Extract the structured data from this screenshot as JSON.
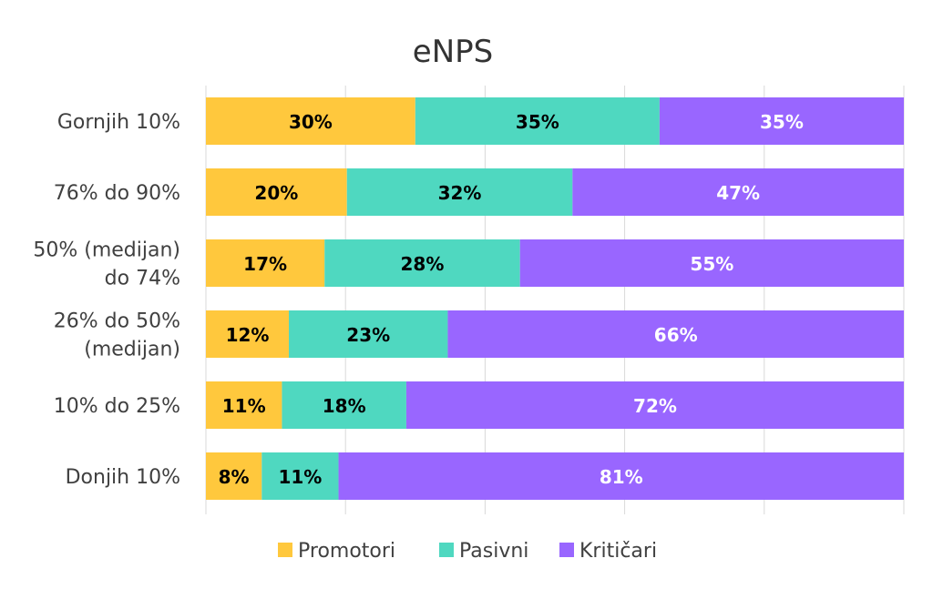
{
  "chart_data": {
    "type": "bar",
    "orientation": "horizontal",
    "stacked": true,
    "title": "eNPS",
    "categories": [
      [
        "Gornjih 10%"
      ],
      [
        "76% do 90%"
      ],
      [
        "50% (medijan)",
        "do 74%"
      ],
      [
        "26% do 50%",
        "(medijan)"
      ],
      [
        "10% do 25%"
      ],
      [
        "Donjih 10%"
      ]
    ],
    "series": [
      {
        "name": "Promotori",
        "color": "#FFC83D",
        "label_color": "#000000",
        "values": [
          30,
          20,
          17,
          12,
          11,
          8
        ],
        "labels": [
          "30%",
          "20%",
          "17%",
          "12%",
          "11%",
          "8%"
        ]
      },
      {
        "name": "Pasivni",
        "color": "#4FD8C0",
        "label_color": "#000000",
        "values": [
          35,
          32,
          28,
          23,
          18,
          11
        ],
        "labels": [
          "35%",
          "32%",
          "28%",
          "23%",
          "18%",
          "11%"
        ]
      },
      {
        "name": "Kritičari",
        "color": "#9966FF",
        "label_color": "#ffffff",
        "values": [
          35,
          47,
          55,
          66,
          72,
          81
        ],
        "labels": [
          "35%",
          "47%",
          "55%",
          "66%",
          "72%",
          "81%"
        ]
      }
    ],
    "xlim": [
      0,
      100
    ],
    "grid": true,
    "legend": "bottom"
  }
}
